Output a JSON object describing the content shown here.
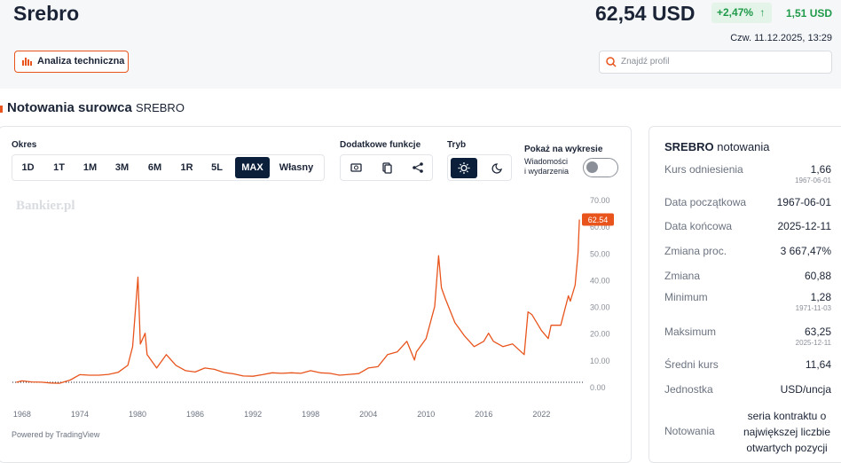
{
  "header": {
    "title": "Srebro",
    "price": "62,54 USD",
    "change_pct": "+2,47%",
    "arrow": "↑",
    "change_abs": "1,51 USD",
    "datetime": "Czw. 11.12.2025, 13:29",
    "button": "Analiza techniczna",
    "search_placeholder": "Znajdź profil"
  },
  "section": {
    "title": "Notowania surowca",
    "symbol": "SREBRO"
  },
  "controls": {
    "period_label": "Okres",
    "periods": [
      "1D",
      "1T",
      "1M",
      "3M",
      "6M",
      "1R",
      "5L",
      "MAX",
      "Własny"
    ],
    "active_period_index": 7,
    "extra_label": "Dodatkowe funkcje",
    "mode_label": "Tryb",
    "show_label": "Pokaż na wykresie",
    "news_toggle": [
      "Wiadomości",
      "i wydarzenia"
    ]
  },
  "watermark": "Bankier.pl",
  "powered_by": "Powered by TradingView",
  "chart_data": {
    "type": "line",
    "grid": false,
    "xlim": [
      1967,
      2026.3
    ],
    "xticks": [
      1968,
      1974,
      1980,
      1986,
      1992,
      1998,
      2004,
      2010,
      2016,
      2022
    ],
    "ylim": [
      0,
      70
    ],
    "yticks": [
      {
        "value": 0,
        "label": "0.00"
      },
      {
        "value": 10,
        "label": "10.00"
      },
      {
        "value": 20,
        "label": "20.00"
      },
      {
        "value": 30,
        "label": "30.00"
      },
      {
        "value": 40,
        "label": "40.00"
      },
      {
        "value": 50,
        "label": "50.00"
      },
      {
        "value": 60,
        "label": "60.00"
      },
      {
        "value": 70,
        "label": "70.00"
      }
    ],
    "series": [
      {
        "name": "SREBRO",
        "color": "#e8541c",
        "x": [
          1967.4,
          1968,
          1969,
          1970,
          1971,
          1971.9,
          1973,
          1974,
          1975,
          1976,
          1977,
          1978,
          1979,
          1979.5,
          1980.05,
          1980.3,
          1980.8,
          1981,
          1982,
          1983,
          1984,
          1985,
          1986,
          1987,
          1988,
          1989,
          1990,
          1991,
          1992,
          1993,
          1994,
          1995,
          1996,
          1997,
          1998,
          1999,
          2000,
          2001,
          2002,
          2003,
          2004,
          2005,
          2006,
          2007,
          2008,
          2008.8,
          2009,
          2010,
          2010.9,
          2011.3,
          2011.6,
          2012,
          2013,
          2014,
          2015,
          2016,
          2016.5,
          2017,
          2018,
          2019,
          2020.2,
          2020.6,
          2021,
          2022,
          2022.7,
          2023,
          2024,
          2024.8,
          2025,
          2025.5,
          2025.8,
          2025.94
        ],
        "values": [
          1.66,
          2.2,
          1.8,
          1.7,
          1.4,
          1.28,
          2.5,
          4.5,
          4.3,
          4.3,
          4.6,
          5.4,
          8,
          15,
          41,
          16,
          20,
          12,
          7,
          12,
          8,
          6,
          5.5,
          7,
          6.5,
          5.3,
          4.8,
          4,
          3.9,
          4.5,
          5.2,
          5,
          5.2,
          5,
          6,
          5.2,
          5,
          4.3,
          4.6,
          4.9,
          7,
          7.5,
          12,
          13,
          17,
          10,
          13,
          18,
          30,
          49,
          37,
          33,
          24,
          19,
          15,
          17,
          20,
          17,
          15,
          16,
          12,
          28,
          27,
          21,
          18,
          23,
          23,
          34,
          32,
          38,
          50,
          62.54
        ]
      }
    ]
  },
  "stats": {
    "title": "SREBRO",
    "subtitle": "notowania",
    "rows": [
      {
        "label": "Kurs odniesienia",
        "value": "1,66",
        "sub": "1967-06-01"
      },
      {
        "label": "Data początkowa",
        "value": "1967-06-01"
      },
      {
        "label": "Data końcowa",
        "value": "2025-12-11"
      },
      {
        "label": "Zmiana proc.",
        "value": "3 667,47%"
      },
      {
        "label": "Zmiana",
        "value": "60,88"
      },
      {
        "label": "Minimum",
        "value": "1,28",
        "sub": "1971-11-03"
      },
      {
        "label": "Maksimum",
        "value": "63,25",
        "sub": "2025-12-11"
      },
      {
        "label": "Średni kurs",
        "value": "11,64"
      },
      {
        "label": "Jednostka",
        "value": "USD/uncja"
      },
      {
        "label": "Notowania",
        "value": "seria kontraktu o największej liczbie otwartych pozycji"
      }
    ]
  }
}
